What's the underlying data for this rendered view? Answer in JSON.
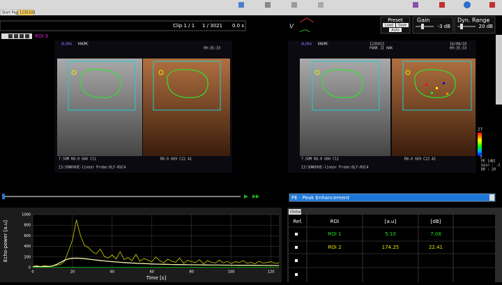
{
  "toolbar": {
    "tabs": [
      "Start Page",
      "1235103"
    ]
  },
  "header": {
    "clip": "Clip 1 / 1",
    "frame": "1 / 3021",
    "time": "0.0 s",
    "roi": "ROI 3"
  },
  "presets": {
    "title": "Preset",
    "buttons": [
      "Load",
      "Save",
      "Auto"
    ],
    "gain_label": "Gain",
    "gain_value": "-3 dB",
    "range_label": "Dyn. Range",
    "range_value": "20 dB"
  },
  "ultrasound": {
    "left": {
      "brand": "ALOKA",
      "site": "KNUMC",
      "clock": "09:35:33",
      "settings_a": "7.5OM R8.0 G66 C11",
      "settings_b": "R8.0 G69 C22 A1",
      "probe": "13:SONOVUE-linear  Probe:OLY-RSC4"
    },
    "right": {
      "brand": "ALOKA",
      "site": "KNUMC",
      "patient_id": "1235013",
      "patient": "PARK JI HAK",
      "date": "16/08/18",
      "clock": "09:35:33",
      "settings_a": "7.5OM R8.0 G66 C11",
      "settings_b": "R8.0 G69 C22 A1",
      "probe": "13:SONOVUE-linear  Probe:OLY-RSC4"
    }
  },
  "colorbar": {
    "max": "27",
    "min": "7",
    "unit": "PE [dB]",
    "gain": "Gain : -3",
    "range": "DR : 20"
  },
  "dropdown": {
    "selected": "PE - Peak Enhancement"
  },
  "table": {
    "tab": "Global",
    "header": [
      "Ref.",
      "ROI",
      "[a.u]",
      "[dB]"
    ],
    "rows": [
      [
        "ROI 1",
        "5.10",
        "7.08"
      ],
      [
        "ROI 2",
        "174.25",
        "22.41"
      ]
    ]
  },
  "chart_data": {
    "type": "line",
    "xlabel": "Time [s]",
    "ylabel": "Echo-power [a.u]",
    "xlim": [
      0,
      124
    ],
    "ylim": [
      0,
      1000
    ],
    "xticks": [
      0,
      20,
      40,
      60,
      80,
      100,
      120
    ],
    "yticks": [
      0,
      200,
      400,
      600,
      800,
      1000
    ],
    "grid": true,
    "x": [
      0,
      2,
      4,
      6,
      8,
      10,
      12,
      14,
      16,
      18,
      20,
      22,
      24,
      26,
      28,
      30,
      32,
      34,
      36,
      38,
      40,
      42,
      44,
      46,
      48,
      50,
      52,
      54,
      56,
      58,
      60,
      62,
      64,
      66,
      68,
      70,
      72,
      74,
      76,
      78,
      80,
      82,
      84,
      86,
      88,
      90,
      92,
      94,
      96,
      98,
      100,
      102,
      104,
      106,
      108,
      110,
      112,
      114,
      116,
      118,
      120,
      122,
      124
    ],
    "series": [
      {
        "color": "#d6d600",
        "values": [
          20,
          35,
          18,
          40,
          25,
          30,
          45,
          60,
          120,
          310,
          520,
          900,
          610,
          420,
          380,
          300,
          260,
          350,
          210,
          180,
          240,
          160,
          300,
          150,
          190,
          130,
          250,
          120,
          170,
          140,
          110,
          200,
          130,
          90,
          160,
          120,
          100,
          180,
          80,
          140,
          110,
          95,
          150,
          70,
          130,
          100,
          85,
          140,
          90,
          120,
          75,
          110,
          95,
          130,
          80,
          100,
          70,
          120,
          85,
          95,
          110,
          80,
          90
        ]
      },
      {
        "color": "#00c000",
        "values": [
          4,
          6,
          3,
          5,
          4,
          6,
          5,
          7,
          6,
          5,
          8,
          6,
          5,
          7,
          4,
          6,
          5,
          6,
          4,
          5,
          7,
          5,
          6,
          4,
          5,
          6,
          5,
          4,
          6,
          5,
          5,
          4,
          6,
          5,
          4,
          5,
          6,
          4,
          5,
          5,
          4,
          6,
          5,
          4,
          5,
          5,
          6,
          4,
          5,
          5,
          4,
          5,
          6,
          4,
          5,
          5,
          4,
          5,
          5,
          6,
          4,
          5,
          5
        ]
      },
      {
        "color": "#f4f4b0",
        "values": [
          20,
          20,
          20,
          20,
          20,
          30,
          60,
          100,
          140,
          165,
          175,
          178,
          175,
          168,
          160,
          150,
          142,
          134,
          126,
          119,
          112,
          106,
          100,
          95,
          90,
          86,
          82,
          78,
          75,
          72,
          69,
          66,
          64,
          62,
          60,
          58,
          57,
          56,
          55,
          54,
          53,
          52,
          51,
          50,
          49,
          48,
          47,
          47,
          46,
          46,
          45,
          45,
          44,
          44,
          43,
          43,
          42,
          42,
          41,
          41,
          40,
          40,
          40
        ]
      }
    ]
  }
}
